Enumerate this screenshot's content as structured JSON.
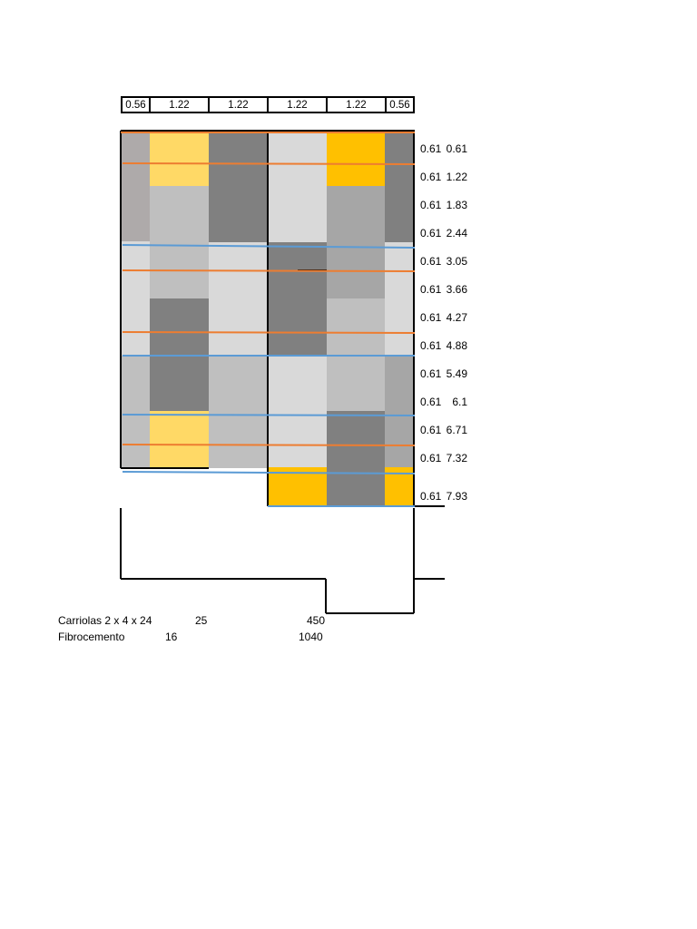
{
  "column_widths": [
    "0.56",
    "1.22",
    "1.22",
    "1.22",
    "1.22",
    "0.56"
  ],
  "rows": [
    {
      "width": "0.61",
      "cumulative": "0.61"
    },
    {
      "width": "0.61",
      "cumulative": "1.22"
    },
    {
      "width": "0.61",
      "cumulative": "1.83"
    },
    {
      "width": "0.61",
      "cumulative": "2.44"
    },
    {
      "width": "0.61",
      "cumulative": "3.05"
    },
    {
      "width": "0.61",
      "cumulative": "3.66"
    },
    {
      "width": "0.61",
      "cumulative": "4.27"
    },
    {
      "width": "0.61",
      "cumulative": "4.88"
    },
    {
      "width": "0.61",
      "cumulative": "5.49"
    },
    {
      "width": "0.61",
      "cumulative": "6.1"
    },
    {
      "width": "0.61",
      "cumulative": "6.71"
    },
    {
      "width": "0.61",
      "cumulative": "7.32"
    },
    {
      "width": "0.61",
      "cumulative": "7.93"
    }
  ],
  "materials": [
    {
      "name": "Carriolas 2 x 4 x 24",
      "qty": "25",
      "total": "450"
    },
    {
      "name": "Fibrocemento",
      "qty": "16",
      "total": "1040"
    }
  ],
  "colors": {
    "light_gray": "#d9d9d9",
    "mid_gray": "#bfbfbf",
    "gray": "#a6a6a6",
    "dark_gray": "#808080",
    "warm_gray": "#aeaaaa",
    "light_gold": "#ffd966",
    "gold": "#ffc000",
    "orange_line": "#ed7d31",
    "blue_line": "#5b9bd5"
  }
}
